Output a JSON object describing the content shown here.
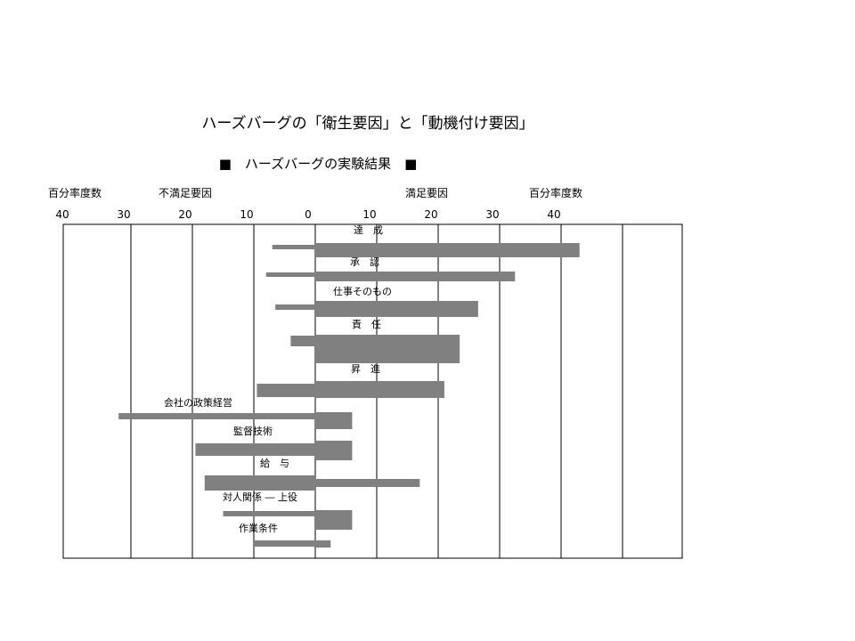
{
  "title": "ハーズバーグの「衛生要因」と「動機付け要因」",
  "subtitle": "■　ハーズバーグの実験結果　■",
  "headers": {
    "left_freq": "百分率度数",
    "left_factor": "不満足要因",
    "right_factor": "満足要因",
    "right_freq": "百分率度数"
  },
  "colors": {
    "bar": "#808080",
    "frame": "#000000"
  },
  "chart_data": {
    "type": "bar",
    "orientation": "horizontal",
    "title": "ハーズバーグの実験結果",
    "x_ticks": [
      "40",
      "30",
      "20",
      "10",
      "0",
      "10",
      "20",
      "30",
      "40"
    ],
    "xlim": [
      -40,
      60
    ],
    "series": [
      {
        "name": "不満足要因",
        "values": [
          -7,
          -8,
          -6.5,
          -4,
          -9.5,
          -32,
          -19.5,
          -18,
          -15,
          -10
        ]
      },
      {
        "name": "満足要因",
        "values": [
          43,
          32.5,
          26.5,
          23.5,
          21,
          6,
          6,
          17,
          6,
          2.5
        ]
      }
    ],
    "categories": [
      "達　成",
      "承　認",
      "仕事そのもの",
      "責　任",
      "昇　進",
      "会社の政策経営",
      "監督技術",
      "給　与",
      "対人関係 ― 上役",
      "作業条件"
    ]
  }
}
